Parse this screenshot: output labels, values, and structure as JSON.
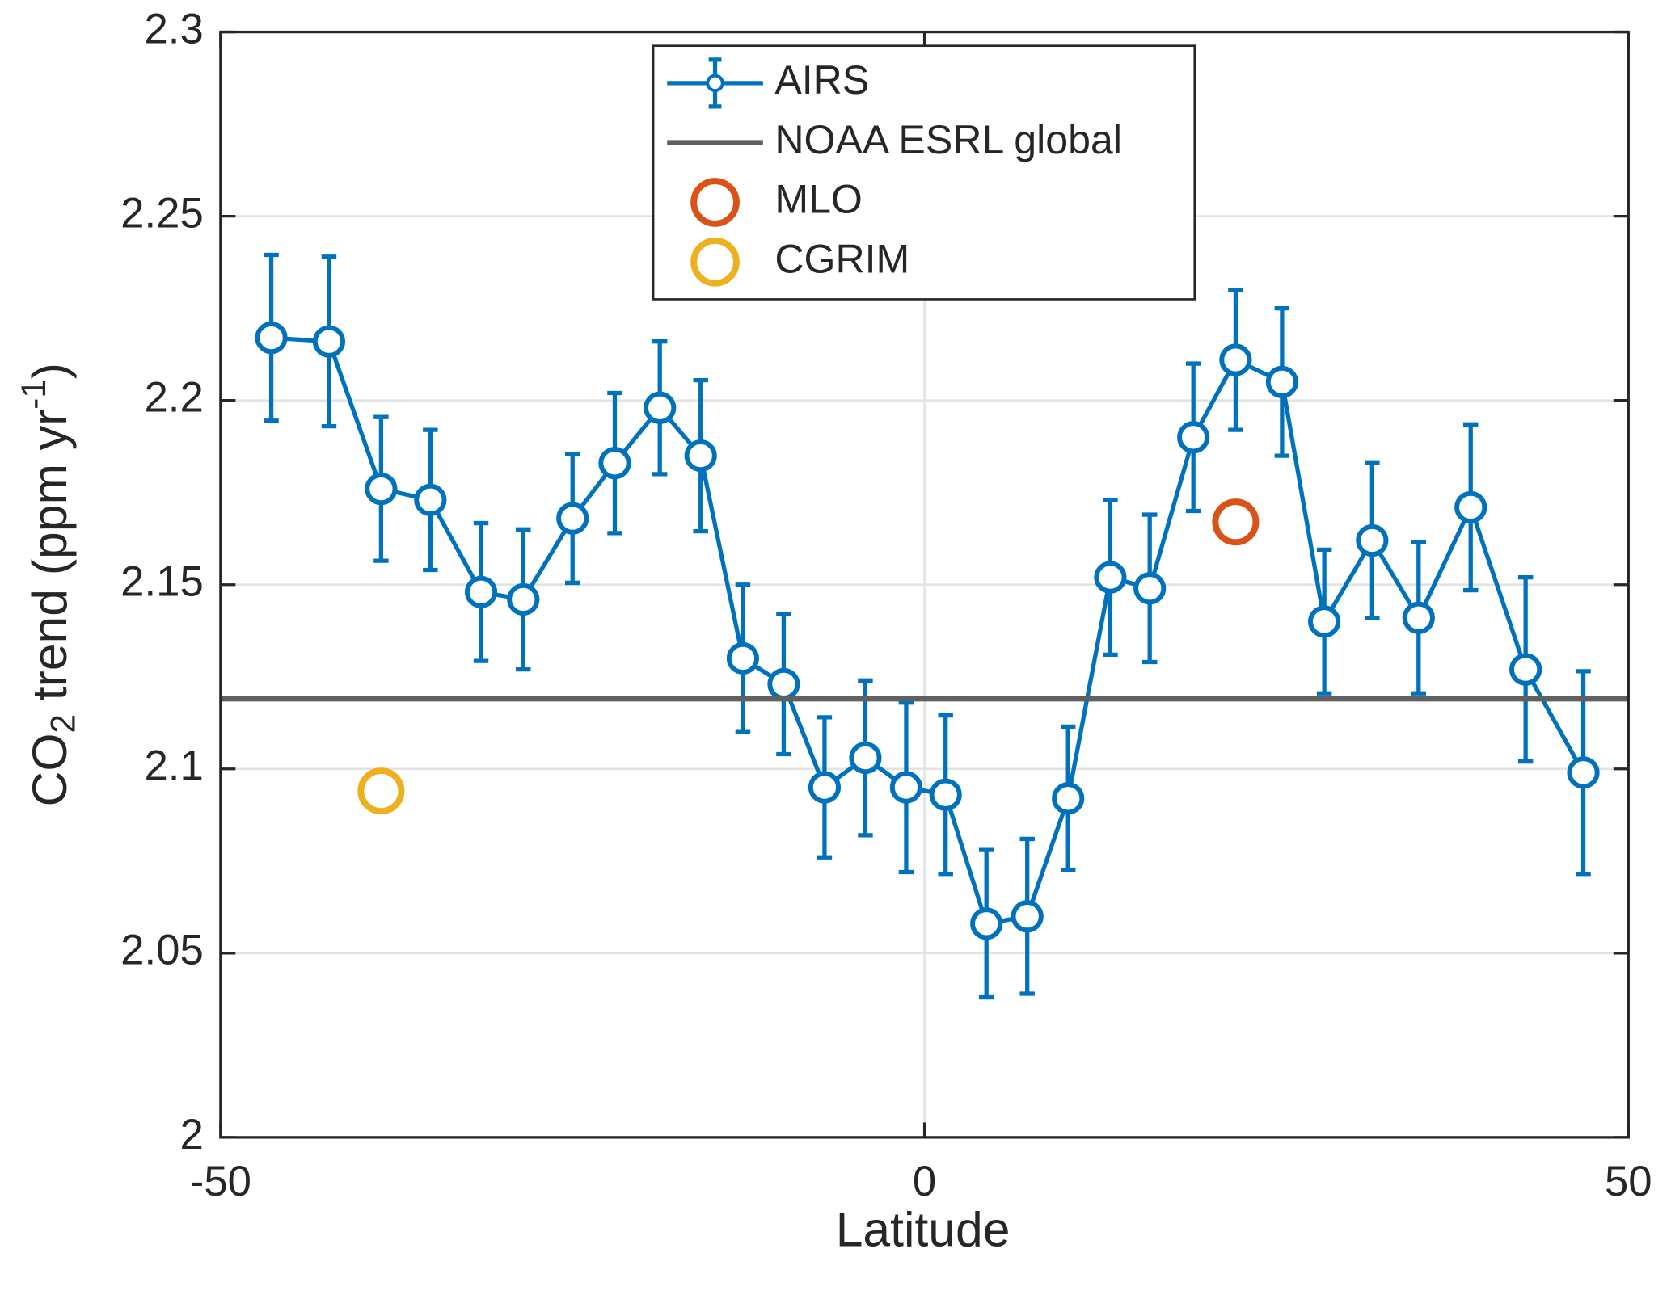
{
  "chart_data": {
    "type": "line",
    "xlabel": "Latitude",
    "ylabel": [
      "CO",
      "2",
      " trend (ppm yr",
      "-1",
      ")"
    ],
    "xlim": [
      -50,
      50
    ],
    "xticks": [
      -50,
      0,
      50
    ],
    "ylim": [
      2,
      2.3
    ],
    "yticks": [
      2,
      2.05,
      2.1,
      2.15,
      2.2,
      2.25,
      2.3
    ],
    "grid": true,
    "legend": "top",
    "series": [
      {
        "name": "AIRS",
        "type": "errorbar",
        "color": "#0072bd",
        "x": [
          -46.4,
          -42.3,
          -38.6,
          -35.1,
          -31.5,
          -28.5,
          -25.0,
          -22.0,
          -18.8,
          -15.9,
          -12.9,
          -10.0,
          -7.1,
          -4.2,
          -1.3,
          1.5,
          4.4,
          7.3,
          10.2,
          13.2,
          16.0,
          19.1,
          22.1,
          25.4,
          28.4,
          31.8,
          35.1,
          38.8,
          42.7,
          46.8
        ],
        "values": [
          2.217,
          2.216,
          2.176,
          2.173,
          2.148,
          2.146,
          2.168,
          2.183,
          2.198,
          2.185,
          2.13,
          2.123,
          2.095,
          2.103,
          2.095,
          2.093,
          2.058,
          2.06,
          2.092,
          2.152,
          2.149,
          2.19,
          2.211,
          2.205,
          2.14,
          2.162,
          2.141,
          2.171,
          2.127,
          2.099
        ],
        "errors": [
          0.0225,
          0.023,
          0.0195,
          0.019,
          0.0187,
          0.019,
          0.0175,
          0.019,
          0.018,
          0.0205,
          0.02,
          0.019,
          0.019,
          0.021,
          0.023,
          0.0215,
          0.02,
          0.021,
          0.0195,
          0.021,
          0.02,
          0.02,
          0.019,
          0.02,
          0.0195,
          0.021,
          0.0205,
          0.0225,
          0.025,
          0.0275
        ]
      },
      {
        "name": "NOAA ESRL global",
        "type": "hline",
        "color": "#606060",
        "values": [
          2.119
        ]
      },
      {
        "name": "MLO",
        "type": "scatter",
        "color": "#d95319",
        "x": [
          22.1
        ],
        "values": [
          2.167
        ]
      },
      {
        "name": "CGRIM",
        "type": "scatter",
        "color": "#edb120",
        "x": [
          -38.6
        ],
        "values": [
          2.094
        ]
      }
    ]
  }
}
